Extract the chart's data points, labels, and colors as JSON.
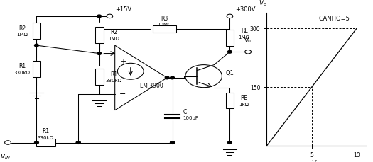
{
  "bg_color": "#ffffff",
  "line_color": "#000000",
  "text_color": "#000000",
  "font_size_small": 5.5,
  "font_size_label": 6.5,
  "graph": {
    "x_max": 11,
    "y_max": 340,
    "x_ticks": [
      5,
      10
    ],
    "y_ticks": [
      150,
      300
    ],
    "ganho_label": "GANHO=5",
    "x_label": "VIN",
    "y_label": "V0"
  }
}
